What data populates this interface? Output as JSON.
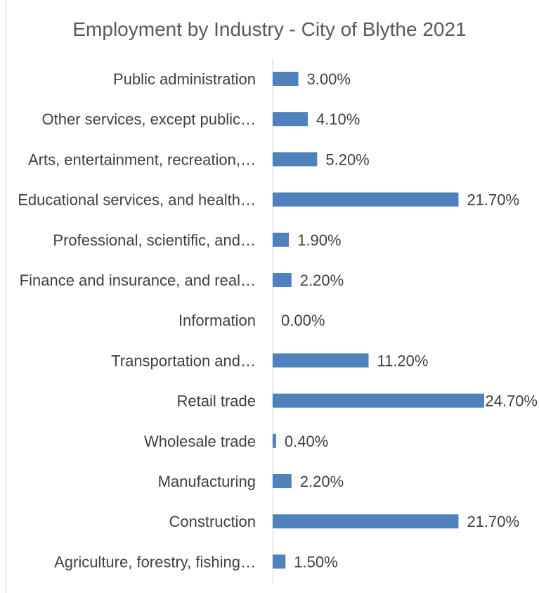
{
  "chart_data": {
    "type": "bar",
    "orientation": "horizontal",
    "title": "Employment by Industry - City of Blythe 2021",
    "xlabel": "",
    "ylabel": "",
    "categories": [
      "Public administration",
      "Other services, except public…",
      "Arts, entertainment, recreation,…",
      "Educational services, and health…",
      "Professional, scientific, and…",
      "Finance and insurance, and real…",
      "Information",
      "Transportation and…",
      "Retail trade",
      "Wholesale trade",
      "Manufacturing",
      "Construction",
      "Agriculture, forestry, fishing…"
    ],
    "values": [
      3.0,
      4.1,
      5.2,
      21.7,
      1.9,
      2.2,
      0.0,
      11.2,
      24.7,
      0.4,
      2.2,
      21.7,
      1.5
    ],
    "value_labels": [
      "3.00%",
      "4.10%",
      "5.20%",
      "21.70%",
      "1.90%",
      "2.20%",
      "0.00%",
      "11.20%",
      "24.70%",
      "0.40%",
      "2.20%",
      "21.70%",
      "1.50%"
    ],
    "bar_color": "#4f81bd",
    "grid": false,
    "legend": "none"
  }
}
